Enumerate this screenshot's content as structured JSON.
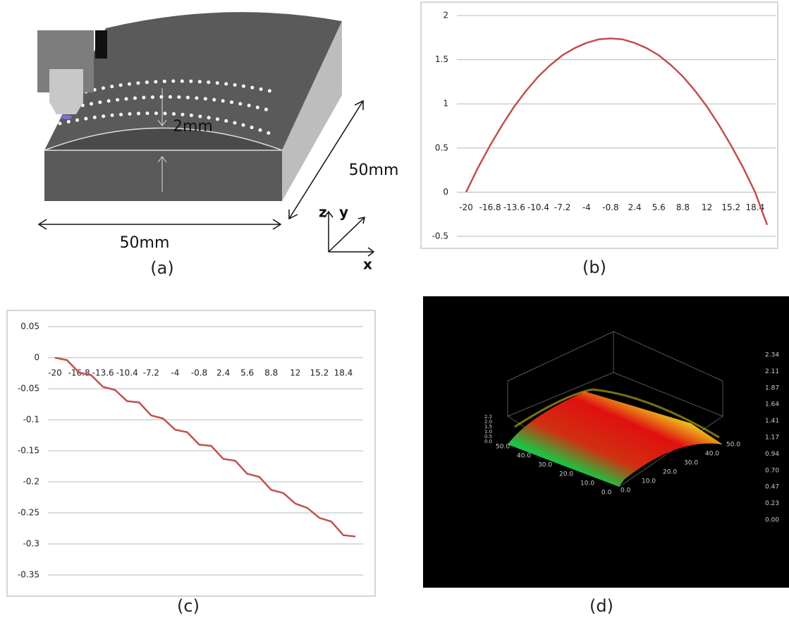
{
  "chart_data": [
    {
      "type": "line",
      "categories": [
        -20,
        null,
        -16.8,
        null,
        -13.6,
        null,
        -10.4,
        null,
        -7.2,
        null,
        -4,
        null,
        -0.8,
        null,
        2.4,
        null,
        5.6,
        null,
        8.8,
        null,
        12,
        null,
        15.2,
        null,
        18.4,
        null
      ],
      "values": [
        0,
        0.28,
        0.53,
        0.76,
        0.97,
        1.15,
        1.31,
        1.44,
        1.55,
        1.63,
        1.69,
        1.73,
        1.74,
        1.73,
        1.69,
        1.63,
        1.55,
        1.44,
        1.31,
        1.15,
        0.97,
        0.76,
        0.53,
        0.28,
        0,
        -0.37
      ],
      "color": "#c0504d",
      "ylim": [
        -0.5,
        2
      ],
      "yticks": [
        -0.5,
        0,
        0.5,
        1,
        1.5,
        2
      ],
      "grid": true,
      "caption": "(b)"
    },
    {
      "type": "line",
      "categories": [
        -20,
        null,
        -16.8,
        null,
        -13.6,
        null,
        -10.4,
        null,
        -7.2,
        null,
        -4,
        null,
        -0.8,
        null,
        2.4,
        null,
        5.6,
        null,
        8.8,
        null,
        12,
        null,
        15.2,
        null,
        18.4,
        null
      ],
      "values": [
        0,
        -0.004,
        -0.024,
        -0.028,
        -0.047,
        -0.052,
        -0.07,
        -0.072,
        -0.093,
        -0.098,
        -0.116,
        -0.12,
        -0.14,
        -0.142,
        -0.163,
        -0.166,
        -0.187,
        -0.192,
        -0.213,
        -0.218,
        -0.235,
        -0.242,
        -0.258,
        -0.264,
        -0.286,
        -0.288
      ],
      "color": "#c0504d",
      "ylim": [
        -0.35,
        0.05
      ],
      "yticks": [
        -0.35,
        -0.3,
        -0.25,
        -0.2,
        -0.15,
        -0.1,
        -0.05,
        0,
        0.05
      ],
      "grid": true,
      "caption": "(c)"
    }
  ],
  "diagram": {
    "depth_label": "2mm",
    "width_label": "50mm",
    "length_label": "50mm",
    "axis_z": "z",
    "axis_y": "y",
    "axis_x": "x",
    "caption": "(a)"
  },
  "surface": {
    "caption": "(d)",
    "colorbar_labels": [
      "2.34",
      "2.11",
      "1.87",
      "1.64",
      "1.41",
      "1.17",
      "0.94",
      "0.70",
      "0.47",
      "0.23",
      "0.00"
    ],
    "left_axis_labels": [
      "50.0",
      "40.0",
      "30.0",
      "20.0",
      "10.0",
      "0.0"
    ],
    "right_axis_labels": [
      "0.0",
      "10.0",
      "20.0",
      "30.0",
      "40.0",
      "50.0"
    ],
    "z_axis_labels": [
      "2.2",
      "2.0",
      "1.5",
      "1.0",
      "0.5",
      "0.0"
    ]
  }
}
